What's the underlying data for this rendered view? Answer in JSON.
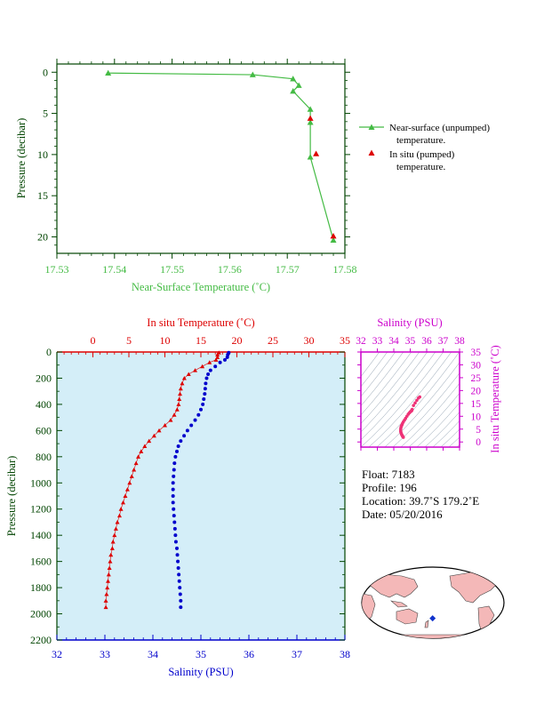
{
  "colors": {
    "near_surface": "#44bb44",
    "in_situ": "#dd0000",
    "salinity_pts": "#0000cc",
    "salinity_axis": "#cc00cc",
    "axis_dark": "#004400",
    "plot_bg": "#d4eef8"
  },
  "chart_data": [
    {
      "type": "line",
      "xlabel": "Near-Surface Temperature (˚C)",
      "ylabel": "Pressure (decibar)",
      "xlim": [
        17.53,
        17.58
      ],
      "ylim": [
        22,
        -1
      ],
      "xticks": [
        "17.53",
        "17.54",
        "17.55",
        "17.56",
        "17.57",
        "17.58"
      ],
      "yticks": [
        "0",
        "5",
        "10",
        "15",
        "20"
      ],
      "legend_position": "right",
      "series": [
        {
          "name": "Near-surface (unpumped) temperature.",
          "marker": "triangle",
          "points": [
            [
              17.5389,
              0.1
            ],
            [
              17.564,
              0.3
            ],
            [
              17.571,
              0.8
            ],
            [
              17.572,
              1.6
            ],
            [
              17.571,
              2.3
            ],
            [
              17.574,
              4.5
            ],
            [
              17.574,
              6.1
            ],
            [
              17.574,
              10.3
            ],
            [
              17.578,
              20.4
            ]
          ]
        },
        {
          "name": "In situ (pumped) temperature.",
          "marker": "triangle",
          "points": [
            [
              17.574,
              5.6
            ],
            [
              17.575,
              9.9
            ],
            [
              17.578,
              19.9
            ]
          ]
        }
      ]
    },
    {
      "type": "scatter",
      "xlabel": "Salinity (PSU)",
      "x2label": "In situ Temperature (˚C)",
      "ylabel": "Pressure (decibar)",
      "xlim": [
        32,
        38
      ],
      "x2lim": [
        -5,
        35
      ],
      "ylim": [
        2200,
        0
      ],
      "xticks": [
        "32",
        "33",
        "34",
        "35",
        "36",
        "37",
        "38"
      ],
      "x2ticks": [
        "0",
        "5",
        "10",
        "15",
        "20",
        "25",
        "30",
        "35"
      ],
      "yticks": [
        "0",
        "200",
        "400",
        "600",
        "800",
        "1000",
        "1200",
        "1400",
        "1600",
        "1800",
        "2000",
        "2200"
      ],
      "series": [
        {
          "name": "Temperature",
          "axis": "top",
          "marker": "triangle",
          "points": [
            [
              17.5,
              5
            ],
            [
              17.3,
              20
            ],
            [
              17.3,
              40
            ],
            [
              17.1,
              60
            ],
            [
              16.2,
              80
            ],
            [
              15.2,
              110
            ],
            [
              14.2,
              140
            ],
            [
              13.3,
              170
            ],
            [
              12.7,
              200
            ],
            [
              12.4,
              240
            ],
            [
              12.2,
              280
            ],
            [
              12.1,
              320
            ],
            [
              12.0,
              360
            ],
            [
              11.9,
              400
            ],
            [
              11.7,
              440
            ],
            [
              11.3,
              480
            ],
            [
              10.8,
              520
            ],
            [
              10.0,
              560
            ],
            [
              9.2,
              600
            ],
            [
              8.5,
              640
            ],
            [
              7.8,
              680
            ],
            [
              7.2,
              720
            ],
            [
              6.7,
              760
            ],
            [
              6.3,
              800
            ],
            [
              6.0,
              850
            ],
            [
              5.7,
              900
            ],
            [
              5.4,
              950
            ],
            [
              5.1,
              1000
            ],
            [
              4.8,
              1050
            ],
            [
              4.5,
              1100
            ],
            [
              4.2,
              1150
            ],
            [
              3.9,
              1200
            ],
            [
              3.7,
              1250
            ],
            [
              3.4,
              1300
            ],
            [
              3.2,
              1350
            ],
            [
              3.0,
              1400
            ],
            [
              2.8,
              1450
            ],
            [
              2.7,
              1500
            ],
            [
              2.5,
              1550
            ],
            [
              2.4,
              1600
            ],
            [
              2.3,
              1650
            ],
            [
              2.2,
              1700
            ],
            [
              2.1,
              1750
            ],
            [
              2.0,
              1800
            ],
            [
              1.9,
              1850
            ],
            [
              1.8,
              1900
            ],
            [
              1.8,
              1950
            ]
          ]
        },
        {
          "name": "Salinity",
          "axis": "bottom",
          "marker": "circle",
          "points": [
            [
              35.58,
              5
            ],
            [
              35.56,
              20
            ],
            [
              35.55,
              40
            ],
            [
              35.5,
              60
            ],
            [
              35.4,
              80
            ],
            [
              35.3,
              110
            ],
            [
              35.2,
              140
            ],
            [
              35.15,
              170
            ],
            [
              35.12,
              200
            ],
            [
              35.1,
              240
            ],
            [
              35.09,
              280
            ],
            [
              35.08,
              320
            ],
            [
              35.06,
              360
            ],
            [
              35.04,
              400
            ],
            [
              35.0,
              440
            ],
            [
              34.95,
              480
            ],
            [
              34.88,
              520
            ],
            [
              34.8,
              560
            ],
            [
              34.72,
              600
            ],
            [
              34.65,
              640
            ],
            [
              34.58,
              680
            ],
            [
              34.53,
              720
            ],
            [
              34.5,
              760
            ],
            [
              34.47,
              800
            ],
            [
              34.45,
              850
            ],
            [
              34.44,
              900
            ],
            [
              34.43,
              950
            ],
            [
              34.42,
              1000
            ],
            [
              34.42,
              1050
            ],
            [
              34.42,
              1100
            ],
            [
              34.42,
              1150
            ],
            [
              34.43,
              1200
            ],
            [
              34.44,
              1250
            ],
            [
              34.45,
              1300
            ],
            [
              34.46,
              1350
            ],
            [
              34.47,
              1400
            ],
            [
              34.48,
              1450
            ],
            [
              34.5,
              1500
            ],
            [
              34.51,
              1550
            ],
            [
              34.52,
              1600
            ],
            [
              34.53,
              1650
            ],
            [
              34.54,
              1700
            ],
            [
              34.55,
              1750
            ],
            [
              34.56,
              1800
            ],
            [
              34.57,
              1850
            ],
            [
              34.58,
              1900
            ],
            [
              34.58,
              1950
            ]
          ]
        }
      ]
    },
    {
      "type": "scatter",
      "xlabel": "Salinity (PSU)",
      "ylabel": "In situ Temperature (˚C)",
      "xlim": [
        32,
        38
      ],
      "ylim": [
        -2,
        35
      ],
      "xticks": [
        "32",
        "33",
        "34",
        "35",
        "36",
        "37",
        "38"
      ],
      "yticks": [
        "0",
        "5",
        "10",
        "15",
        "20",
        "25",
        "30",
        "35"
      ],
      "points": [
        [
          35.58,
          17.5
        ],
        [
          35.5,
          17.1
        ],
        [
          35.4,
          16.2
        ],
        [
          35.3,
          15.2
        ],
        [
          35.2,
          14.2
        ],
        [
          35.12,
          12.7
        ],
        [
          35.1,
          12.4
        ],
        [
          35.08,
          12.1
        ],
        [
          35.04,
          11.9
        ],
        [
          35.0,
          11.7
        ],
        [
          34.95,
          11.3
        ],
        [
          34.88,
          10.8
        ],
        [
          34.8,
          10.0
        ],
        [
          34.72,
          9.2
        ],
        [
          34.65,
          8.5
        ],
        [
          34.58,
          7.8
        ],
        [
          34.53,
          7.2
        ],
        [
          34.5,
          6.7
        ],
        [
          34.47,
          6.3
        ],
        [
          34.45,
          6.0
        ],
        [
          34.43,
          5.4
        ],
        [
          34.42,
          4.8
        ],
        [
          34.42,
          4.2
        ],
        [
          34.43,
          3.9
        ],
        [
          34.45,
          3.4
        ],
        [
          34.47,
          3.0
        ],
        [
          34.5,
          2.7
        ],
        [
          34.52,
          2.4
        ],
        [
          34.54,
          2.2
        ],
        [
          34.56,
          2.0
        ],
        [
          34.58,
          1.8
        ]
      ]
    }
  ],
  "info": {
    "float": "Float:  7183",
    "profile": "Profile:  196",
    "location": "Location:  39.7˚S  179.2˚E",
    "date": "Date:  05/20/2016"
  },
  "map": {
    "marker_lon": 179.2,
    "marker_lat": -39.7
  }
}
